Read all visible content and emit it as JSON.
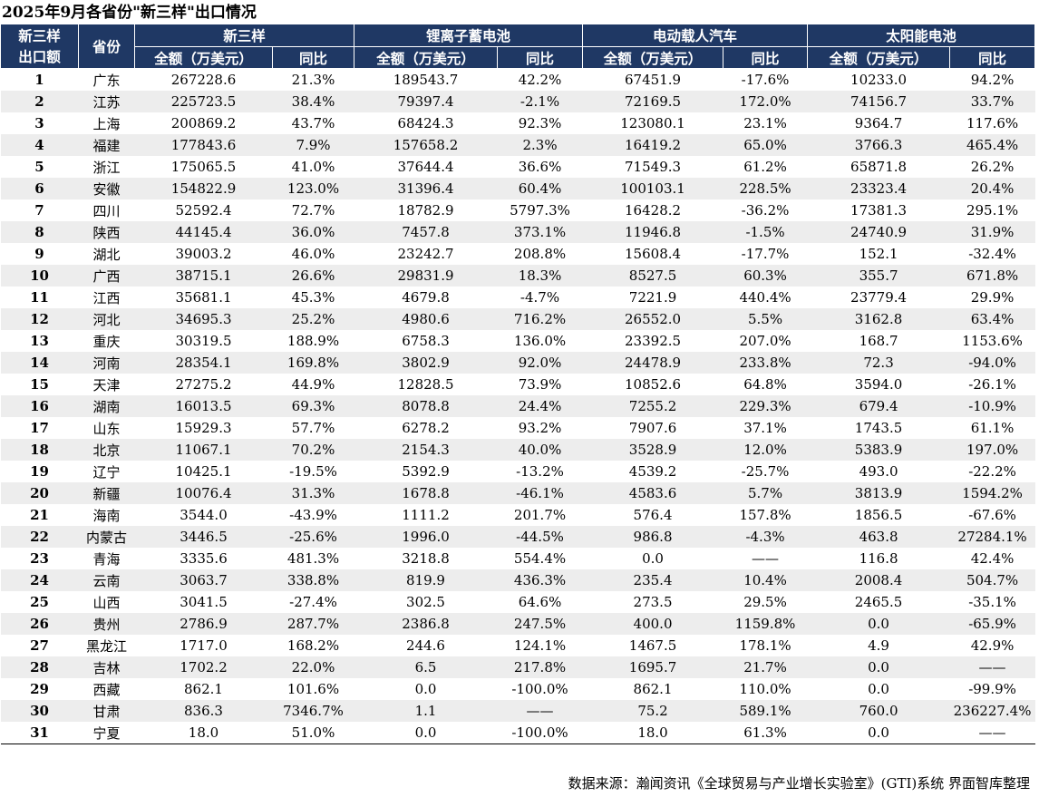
{
  "title": "2025年9月各省份\"新三样\"出口情况",
  "header": {
    "rank_col": "新三样出口额",
    "province_col": "省份",
    "groups": [
      "新三样",
      "锂离子蓄电池",
      "电动载人汽车",
      "太阳能电池"
    ],
    "amount_label": "全额（万美元）",
    "yoy_label": "同比"
  },
  "rows": [
    [
      "1",
      "广东",
      "267228.6",
      "21.3%",
      "189543.7",
      "42.2%",
      "67451.9",
      "-17.6%",
      "10233.0",
      "94.2%"
    ],
    [
      "2",
      "江苏",
      "225723.5",
      "38.4%",
      "79397.4",
      "-2.1%",
      "72169.5",
      "172.0%",
      "74156.7",
      "33.7%"
    ],
    [
      "3",
      "上海",
      "200869.2",
      "43.7%",
      "68424.3",
      "92.3%",
      "123080.1",
      "23.1%",
      "9364.7",
      "117.6%"
    ],
    [
      "4",
      "福建",
      "177843.6",
      "7.9%",
      "157658.2",
      "2.3%",
      "16419.2",
      "65.0%",
      "3766.3",
      "465.4%"
    ],
    [
      "5",
      "浙江",
      "175065.5",
      "41.0%",
      "37644.4",
      "36.6%",
      "71549.3",
      "61.2%",
      "65871.8",
      "26.2%"
    ],
    [
      "6",
      "安徽",
      "154822.9",
      "123.0%",
      "31396.4",
      "60.4%",
      "100103.1",
      "228.5%",
      "23323.4",
      "20.4%"
    ],
    [
      "7",
      "四川",
      "52592.4",
      "72.7%",
      "18782.9",
      "5797.3%",
      "16428.2",
      "-36.2%",
      "17381.3",
      "295.1%"
    ],
    [
      "8",
      "陕西",
      "44145.4",
      "36.0%",
      "7457.8",
      "373.1%",
      "11946.8",
      "-1.5%",
      "24740.9",
      "31.9%"
    ],
    [
      "9",
      "湖北",
      "39003.2",
      "46.0%",
      "23242.7",
      "208.8%",
      "15608.4",
      "-17.7%",
      "152.1",
      "-32.4%"
    ],
    [
      "10",
      "广西",
      "38715.1",
      "26.6%",
      "29831.9",
      "18.3%",
      "8527.5",
      "60.3%",
      "355.7",
      "671.8%"
    ],
    [
      "11",
      "江西",
      "35681.1",
      "45.3%",
      "4679.8",
      "-4.7%",
      "7221.9",
      "440.4%",
      "23779.4",
      "29.9%"
    ],
    [
      "12",
      "河北",
      "34695.3",
      "25.2%",
      "4980.6",
      "716.2%",
      "26552.0",
      "5.5%",
      "3162.8",
      "63.4%"
    ],
    [
      "13",
      "重庆",
      "30319.5",
      "188.9%",
      "6758.3",
      "136.0%",
      "23392.5",
      "207.0%",
      "168.7",
      "1153.6%"
    ],
    [
      "14",
      "河南",
      "28354.1",
      "169.8%",
      "3802.9",
      "92.0%",
      "24478.9",
      "233.8%",
      "72.3",
      "-94.0%"
    ],
    [
      "15",
      "天津",
      "27275.2",
      "44.9%",
      "12828.5",
      "73.9%",
      "10852.6",
      "64.8%",
      "3594.0",
      "-26.1%"
    ],
    [
      "16",
      "湖南",
      "16013.5",
      "69.3%",
      "8078.8",
      "24.4%",
      "7255.2",
      "229.3%",
      "679.4",
      "-10.9%"
    ],
    [
      "17",
      "山东",
      "15929.3",
      "57.7%",
      "6278.2",
      "93.2%",
      "7907.6",
      "37.1%",
      "1743.5",
      "61.1%"
    ],
    [
      "18",
      "北京",
      "11067.1",
      "70.2%",
      "2154.3",
      "40.0%",
      "3528.9",
      "12.0%",
      "5383.9",
      "197.0%"
    ],
    [
      "19",
      "辽宁",
      "10425.1",
      "-19.5%",
      "5392.9",
      "-13.2%",
      "4539.2",
      "-25.7%",
      "493.0",
      "-22.2%"
    ],
    [
      "20",
      "新疆",
      "10076.4",
      "31.3%",
      "1678.8",
      "-46.1%",
      "4583.6",
      "5.7%",
      "3813.9",
      "1594.2%"
    ],
    [
      "21",
      "海南",
      "3544.0",
      "-43.9%",
      "1111.2",
      "201.7%",
      "576.4",
      "157.8%",
      "1856.5",
      "-67.6%"
    ],
    [
      "22",
      "内蒙古",
      "3446.5",
      "-25.6%",
      "1996.0",
      "-44.5%",
      "986.8",
      "-4.3%",
      "463.8",
      "27284.1%"
    ],
    [
      "23",
      "青海",
      "3335.6",
      "481.3%",
      "3218.8",
      "554.4%",
      "0.0",
      "——",
      "116.8",
      "42.4%"
    ],
    [
      "24",
      "云南",
      "3063.7",
      "338.8%",
      "819.9",
      "436.3%",
      "235.4",
      "10.4%",
      "2008.4",
      "504.7%"
    ],
    [
      "25",
      "山西",
      "3041.5",
      "-27.4%",
      "302.5",
      "64.6%",
      "273.5",
      "29.5%",
      "2465.5",
      "-35.1%"
    ],
    [
      "26",
      "贵州",
      "2786.9",
      "287.7%",
      "2386.8",
      "247.5%",
      "400.0",
      "1159.8%",
      "0.0",
      "-65.9%"
    ],
    [
      "27",
      "黑龙江",
      "1717.0",
      "168.2%",
      "244.6",
      "124.1%",
      "1467.5",
      "178.1%",
      "4.9",
      "42.9%"
    ],
    [
      "28",
      "吉林",
      "1702.2",
      "22.0%",
      "6.5",
      "217.8%",
      "1695.7",
      "21.7%",
      "0.0",
      "——"
    ],
    [
      "29",
      "西藏",
      "862.1",
      "101.6%",
      "0.0",
      "-100.0%",
      "862.1",
      "110.0%",
      "0.0",
      "-99.9%"
    ],
    [
      "30",
      "甘肃",
      "836.3",
      "7346.7%",
      "1.1",
      "——",
      "75.2",
      "589.1%",
      "760.0",
      "236227.4%"
    ],
    [
      "31",
      "宁夏",
      "18.0",
      "51.0%",
      "0.0",
      "-100.0%",
      "18.0",
      "61.3%",
      "0.0",
      "——"
    ]
  ],
  "footer": "数据来源：瀚闻资讯《全球贸易与产业增长实验室》(GTI)系统  界面智库整理"
}
